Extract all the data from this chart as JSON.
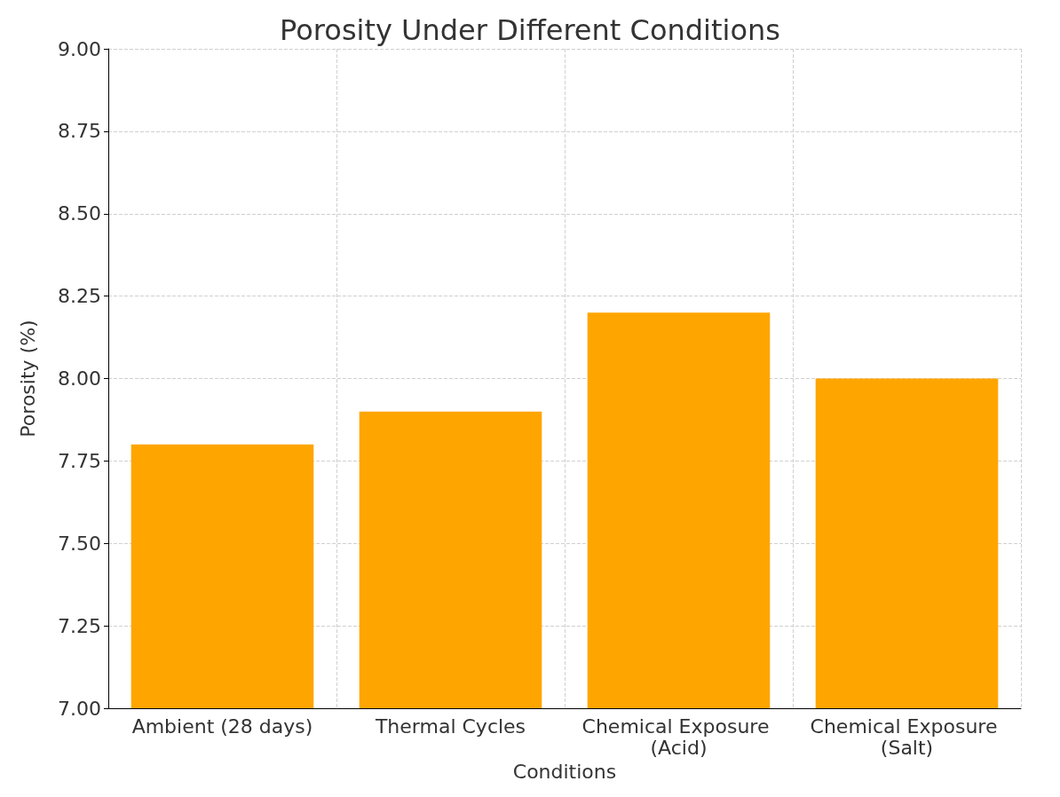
{
  "chart_data": {
    "type": "bar",
    "title": "Porosity Under Different Conditions",
    "xlabel": "Conditions",
    "ylabel": "Porosity (%)",
    "categories": [
      "Ambient (28 days)",
      "Thermal Cycles",
      "Chemical Exposure (Acid)",
      "Chemical Exposure (Salt)"
    ],
    "values": [
      7.8,
      7.9,
      8.2,
      8.0
    ],
    "color": "#ffa500",
    "ylim": [
      7.0,
      9.0
    ],
    "yticks": [
      {
        "value": 7.0,
        "label": "7.00"
      },
      {
        "value": 7.25,
        "label": "7.25"
      },
      {
        "value": 7.5,
        "label": "7.50"
      },
      {
        "value": 7.75,
        "label": "7.75"
      },
      {
        "value": 8.0,
        "label": "8.00"
      },
      {
        "value": 8.25,
        "label": "8.25"
      },
      {
        "value": 8.5,
        "label": "8.50"
      },
      {
        "value": 8.75,
        "label": "8.75"
      },
      {
        "value": 9.0,
        "label": "9.00"
      }
    ],
    "grid": true
  }
}
